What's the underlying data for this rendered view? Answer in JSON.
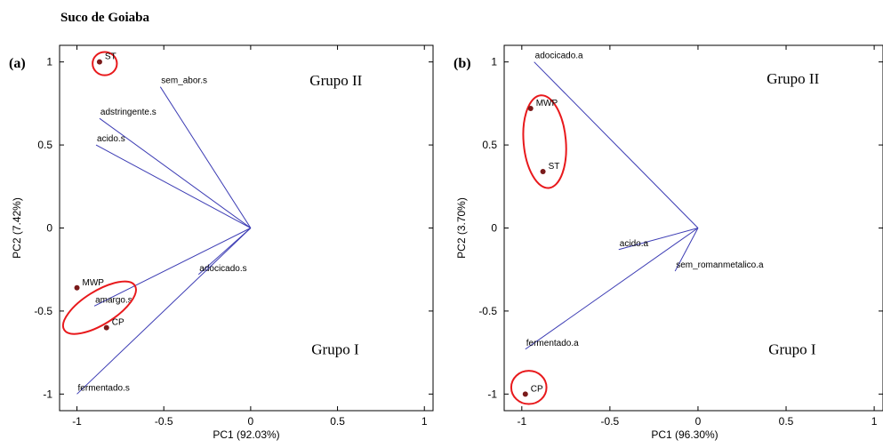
{
  "figure_title": "Suco de Goiaba",
  "chart_data": [
    {
      "type": "biplot",
      "panel_label": "(a)",
      "xlabel": "PC1 (92.03%)",
      "ylabel": "PC2 (7.42%)",
      "xlim": [
        -1.1,
        1.05
      ],
      "ylim": [
        -1.1,
        1.1
      ],
      "xticks": [
        -1,
        -0.5,
        0,
        0.5,
        1
      ],
      "yticks": [
        -1,
        -0.5,
        0,
        0.5,
        1
      ],
      "vectors": [
        {
          "label": "sem_abor.s",
          "x": -0.52,
          "y": 0.85
        },
        {
          "label": "adstringente.s",
          "x": -0.87,
          "y": 0.66
        },
        {
          "label": "acido.s",
          "x": -0.89,
          "y": 0.5
        },
        {
          "label": "adocicado.s",
          "x": -0.3,
          "y": -0.28
        },
        {
          "label": "amargo.s",
          "x": -0.9,
          "y": -0.47
        },
        {
          "label": "fermentado.s",
          "x": -1.0,
          "y": -1.0
        }
      ],
      "points": [
        {
          "label": "ST",
          "x": -0.87,
          "y": 1.0
        },
        {
          "label": "MWP",
          "x": -1.0,
          "y": -0.36
        },
        {
          "label": "CP",
          "x": -0.83,
          "y": -0.6
        }
      ],
      "ellipses": [
        {
          "cx": -0.84,
          "cy": 0.99,
          "rx": 0.07,
          "ry": 0.07,
          "rot": 0
        },
        {
          "cx": -0.87,
          "cy": -0.48,
          "rx": 0.24,
          "ry": 0.1,
          "rot": -32
        }
      ],
      "groups": [
        {
          "label": "Grupo II",
          "x": 0.34,
          "y": 0.86
        },
        {
          "label": "Grupo I",
          "x": 0.35,
          "y": -0.76
        }
      ]
    },
    {
      "type": "biplot",
      "panel_label": "(b)",
      "xlabel": "PC1 (96.30%)",
      "ylabel": "PC2 (3.70%)",
      "xlim": [
        -1.1,
        1.05
      ],
      "ylim": [
        -1.1,
        1.1
      ],
      "xticks": [
        -1,
        -0.5,
        0,
        0.5,
        1
      ],
      "yticks": [
        -1,
        -0.5,
        0,
        0.5,
        1
      ],
      "vectors": [
        {
          "label": "adocicado.a",
          "x": -0.93,
          "y": 1.0
        },
        {
          "label": "acido.a",
          "x": -0.45,
          "y": -0.13
        },
        {
          "label": "sem_romanmetalico.a",
          "x": -0.13,
          "y": -0.26
        },
        {
          "label": "fermentado.a",
          "x": -0.98,
          "y": -0.73
        }
      ],
      "points": [
        {
          "label": "MWP",
          "x": -0.95,
          "y": 0.72
        },
        {
          "label": "ST",
          "x": -0.88,
          "y": 0.34
        },
        {
          "label": "CP",
          "x": -0.98,
          "y": -1.0
        }
      ],
      "ellipses": [
        {
          "cx": -0.87,
          "cy": 0.52,
          "rx": 0.12,
          "ry": 0.28,
          "rot": -5
        },
        {
          "cx": -0.96,
          "cy": -0.96,
          "rx": 0.1,
          "ry": 0.1,
          "rot": 0
        }
      ],
      "groups": [
        {
          "label": "Grupo II",
          "x": 0.39,
          "y": 0.87
        },
        {
          "label": "Grupo I",
          "x": 0.4,
          "y": -0.76
        }
      ]
    }
  ]
}
